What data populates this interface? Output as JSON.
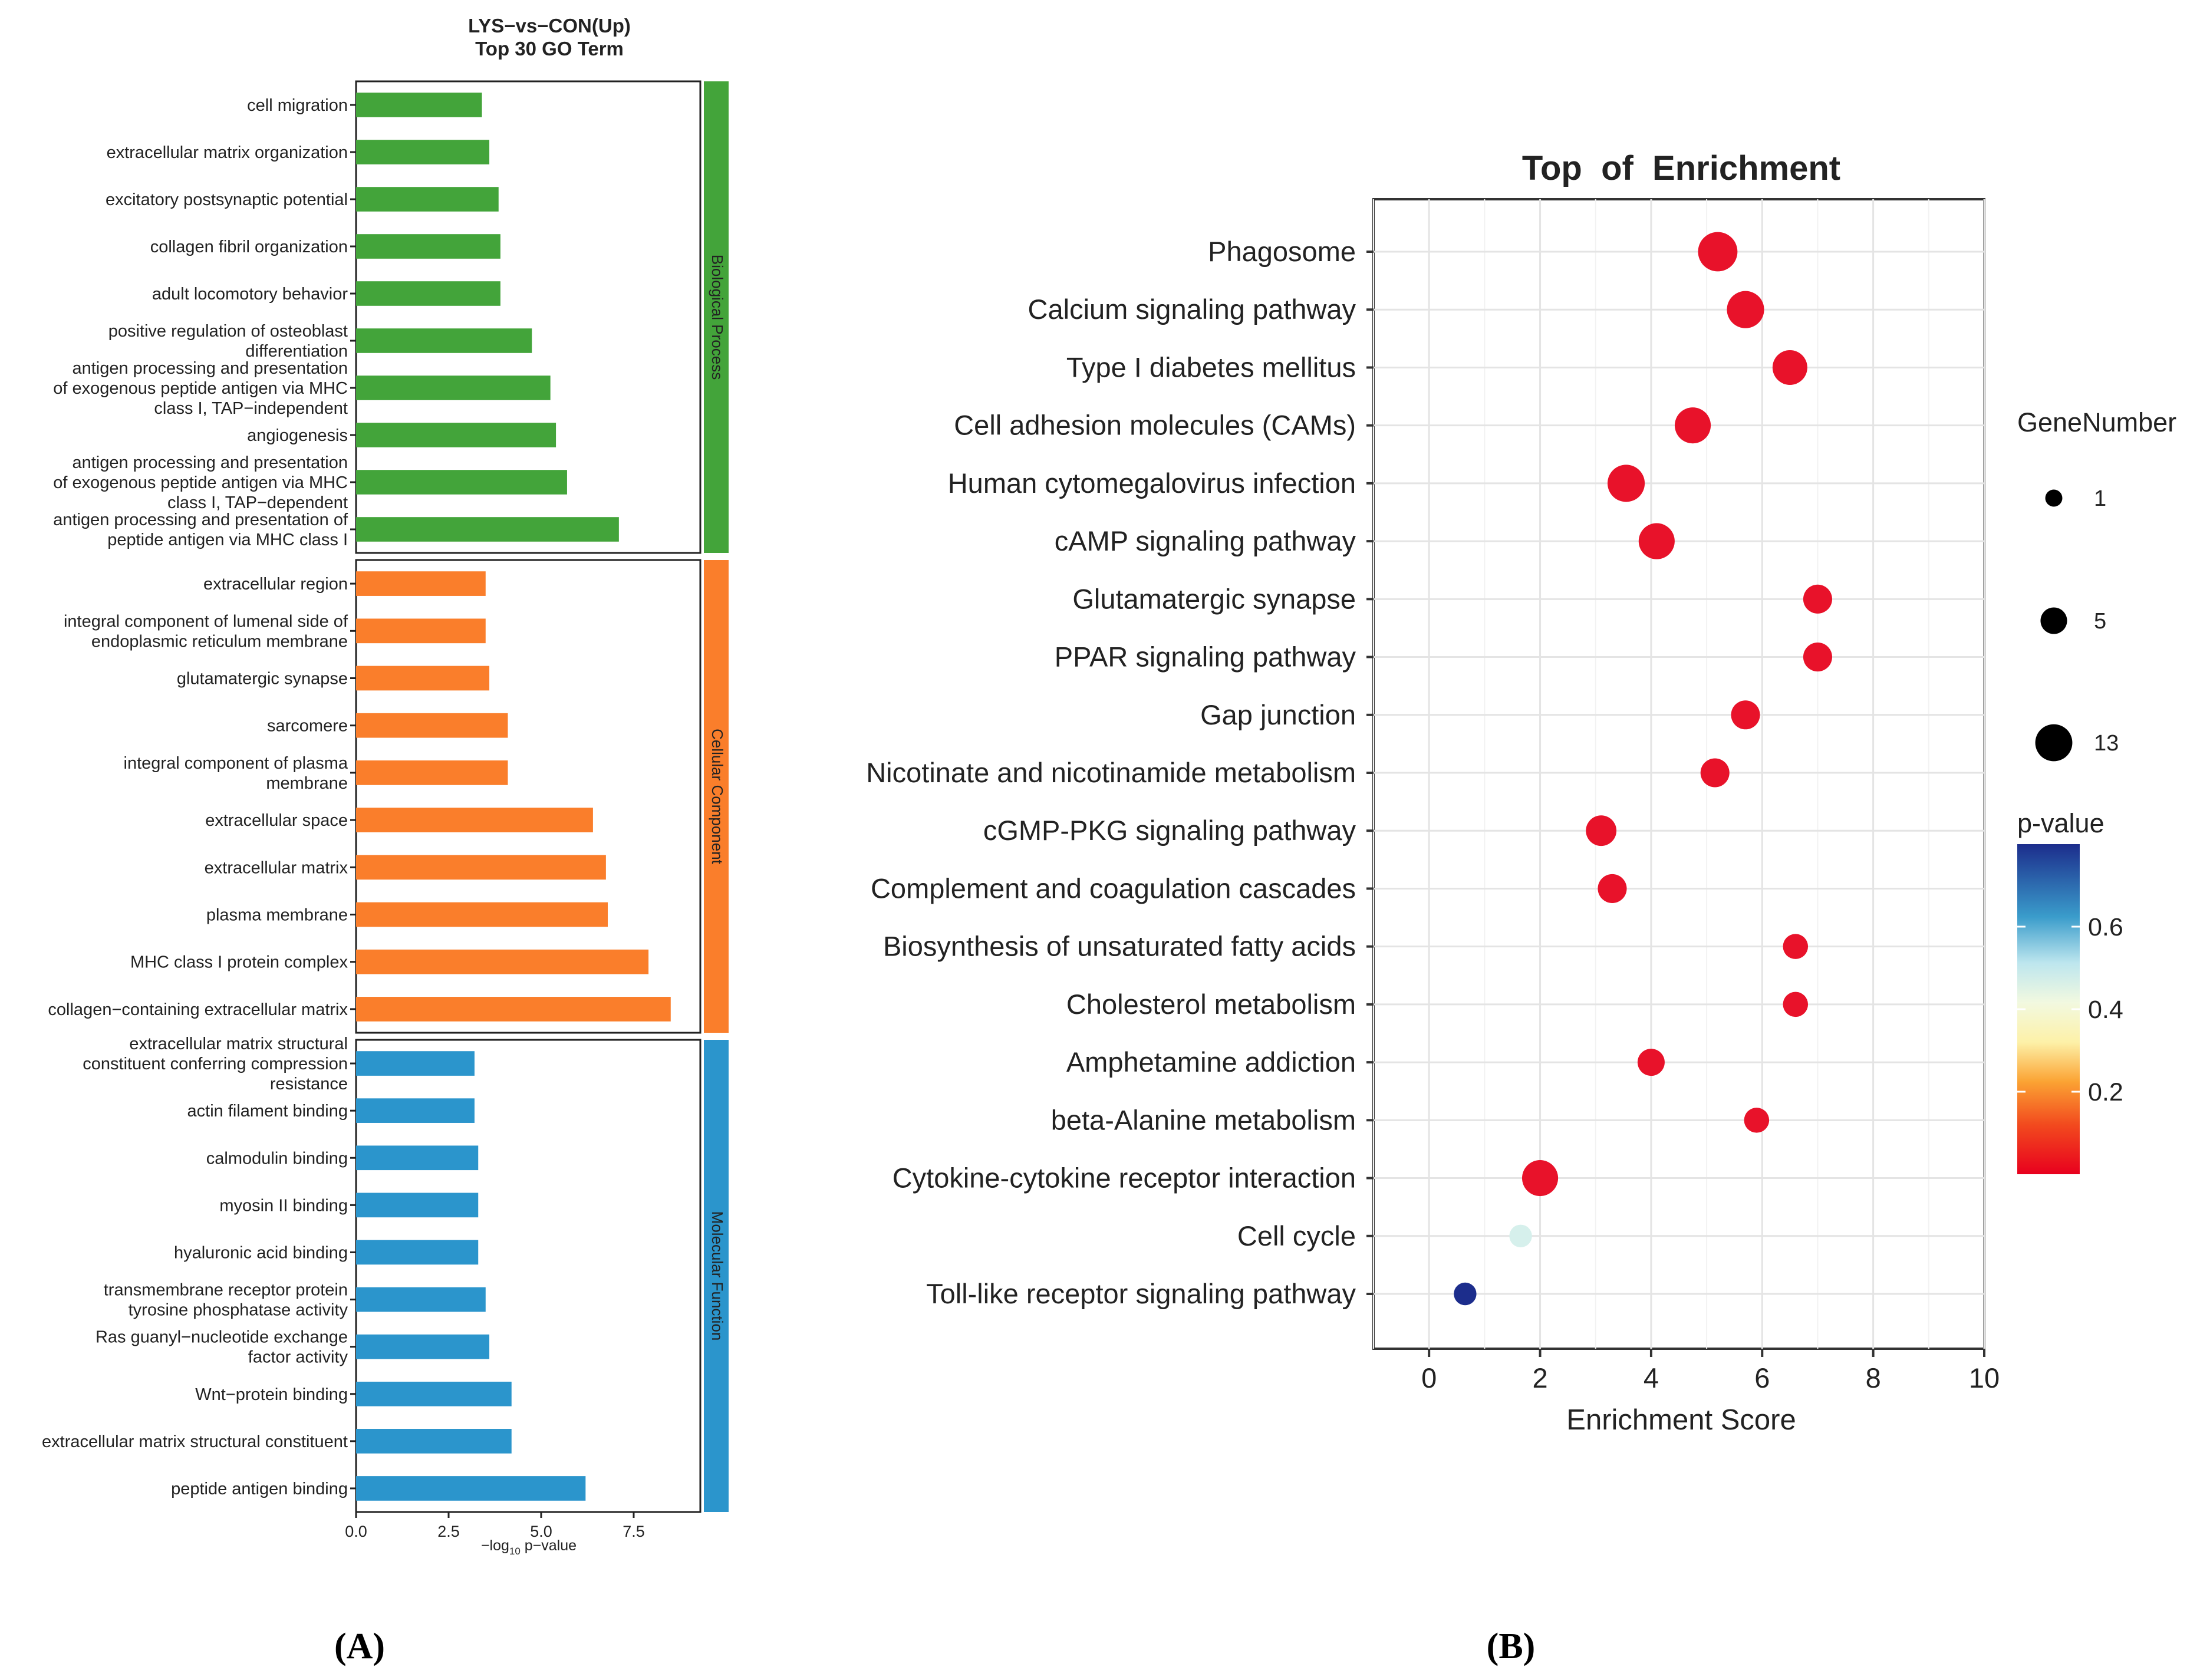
{
  "panel_labels": {
    "a": "(A)",
    "b": "(B)"
  },
  "chart_data": [
    {
      "type": "bar",
      "orientation": "horizontal",
      "title": "LYS−vs−CON(Up)",
      "subtitle": "Top 30 GO Term",
      "xlabel": "−log",
      "xlabel_sub": "10",
      "xlabel_tail": " p−value",
      "xlim": [
        0,
        9.3
      ],
      "xticks": [
        0,
        2.5,
        5,
        7.5
      ],
      "xtick_labels": [
        "0.0",
        "2.5",
        "5.0",
        "7.5"
      ],
      "groups": [
        {
          "name": "Biological Process",
          "color": "#43A43A",
          "categories": [
            "cell migration",
            "extracellular matrix organization",
            "excitatory postsynaptic potential",
            "collagen fibril organization",
            "adult locomotory behavior",
            "positive regulation of osteoblast\ndifferentiation",
            "antigen processing and presentation\nof exogenous peptide antigen via MHC\nclass I, TAP−independent",
            "angiogenesis",
            "antigen processing and presentation\nof exogenous peptide antigen via MHC\nclass I, TAP−dependent",
            "antigen processing and presentation of\npeptide antigen via MHC class I"
          ],
          "values": [
            3.4,
            3.6,
            3.85,
            3.9,
            3.9,
            4.75,
            5.25,
            5.4,
            5.7,
            7.1
          ]
        },
        {
          "name": "Cellular Component",
          "color": "#FA7E2B",
          "categories": [
            "extracellular region",
            "integral component of lumenal side of\nendoplasmic reticulum membrane",
            "glutamatergic synapse",
            "sarcomere",
            "integral component of plasma\nmembrane",
            "extracellular space",
            "extracellular matrix",
            "plasma membrane",
            "MHC class I protein complex",
            "collagen−containing extracellular matrix"
          ],
          "values": [
            3.5,
            3.5,
            3.6,
            4.1,
            4.1,
            6.4,
            6.75,
            6.8,
            7.9,
            8.5
          ]
        },
        {
          "name": "Molecular Function",
          "color": "#2B95CC",
          "categories": [
            "extracellular matrix structural\nconstituent conferring compression\nresistance",
            "actin filament binding",
            "calmodulin binding",
            "myosin II binding",
            "hyaluronic acid binding",
            "transmembrane receptor protein\ntyrosine phosphatase activity",
            "Ras guanyl−nucleotide exchange\nfactor activity",
            "Wnt−protein binding",
            "extracellular matrix structural constituent",
            "peptide antigen binding"
          ],
          "values": [
            3.2,
            3.2,
            3.3,
            3.3,
            3.3,
            3.5,
            3.6,
            4.2,
            4.2,
            6.2
          ]
        }
      ]
    },
    {
      "type": "scatter",
      "title": "Top  of  Enrichment",
      "xlabel": "Enrichment Score",
      "ylabel": "",
      "xlim": [
        -1,
        10
      ],
      "xticks": [
        0,
        2,
        4,
        6,
        8,
        10
      ],
      "pathways": [
        "Phagosome",
        "Calcium signaling pathway",
        "Type I diabetes mellitus",
        "Cell adhesion molecules (CAMs)",
        "Human cytomegalovirus infection",
        "cAMP signaling pathway",
        "Glutamatergic synapse",
        "PPAR signaling pathway",
        "Gap junction",
        "Nicotinate and nicotinamide metabolism",
        "cGMP-PKG signaling pathway",
        "Complement and coagulation cascades",
        "Biosynthesis of unsaturated fatty acids",
        "Cholesterol metabolism",
        "Amphetamine addiction",
        "beta-Alanine metabolism",
        "Cytokine-cytokine receptor interaction",
        "Cell cycle",
        "Toll-like receptor signaling pathway"
      ],
      "enrichment_score": [
        5.2,
        5.7,
        6.5,
        4.75,
        3.55,
        4.1,
        7.0,
        7.0,
        5.7,
        5.15,
        3.1,
        3.3,
        6.6,
        6.6,
        4.0,
        5.9,
        2.0,
        1.65,
        0.65
      ],
      "gene_number": [
        13,
        11,
        9,
        10,
        11,
        10,
        5,
        5,
        5,
        5,
        6,
        5,
        3,
        3,
        4,
        3,
        10,
        2,
        2
      ],
      "p_value": [
        0.001,
        0.001,
        0.001,
        0.001,
        0.001,
        0.001,
        0.001,
        0.001,
        0.001,
        0.001,
        0.001,
        0.001,
        0.001,
        0.001,
        0.001,
        0.001,
        0.001,
        0.6,
        0.8
      ],
      "colors": {
        "low": "#E8122A",
        "high": "#1C2D8C"
      },
      "size_legend": {
        "title": "GeneNumber",
        "values": [
          1,
          5,
          13
        ],
        "labels": [
          "1",
          "5",
          "13"
        ]
      },
      "color_legend": {
        "title": "p-value",
        "range": [
          0,
          0.8
        ],
        "ticks": [
          0.2,
          0.4,
          0.6
        ],
        "tick_labels": [
          "0.2",
          "0.4",
          "0.6"
        ]
      }
    }
  ]
}
